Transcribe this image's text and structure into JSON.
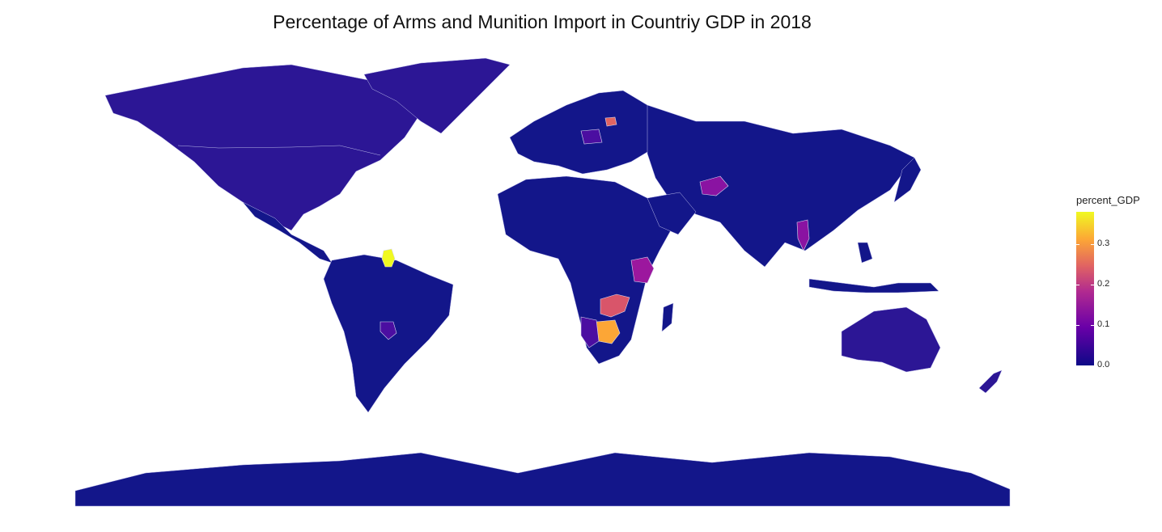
{
  "title": "Percentage of Arms and Munition Import in Countriy GDP in 2018",
  "legend": {
    "title": "percent_GDP",
    "ticks": [
      {
        "label": "0.0",
        "value": 0.0
      },
      {
        "label": "0.1",
        "value": 0.1
      },
      {
        "label": "0.2",
        "value": 0.2
      },
      {
        "label": "0.3",
        "value": 0.3
      }
    ],
    "range": [
      0,
      0.38
    ],
    "palette": [
      "#0d0887",
      "#6a00a8",
      "#b12a90",
      "#e16462",
      "#fca636",
      "#f0f921"
    ]
  },
  "colors": {
    "low": "#13168a",
    "mid_low": "#2c1695",
    "border": "#b9b9e8"
  },
  "chart_data": {
    "type": "heatmap",
    "title": "Percentage of Arms and Munition Import in Countriy GDP in 2018",
    "legend_title": "percent_GDP",
    "color_range": [
      0,
      0.38
    ],
    "regions": [
      {
        "region": "Guyana",
        "value": 0.38
      },
      {
        "region": "Botswana",
        "value": 0.31
      },
      {
        "region": "Zambia",
        "value": 0.22
      },
      {
        "region": "Lithuania",
        "value": 0.2
      },
      {
        "region": "Kenya",
        "value": 0.14
      },
      {
        "region": "Afghanistan",
        "value": 0.12
      },
      {
        "region": "Thailand",
        "value": 0.12
      },
      {
        "region": "Namibia",
        "value": 0.09
      },
      {
        "region": "Paraguay",
        "value": 0.08
      },
      {
        "region": "Poland",
        "value": 0.08
      }
    ]
  }
}
